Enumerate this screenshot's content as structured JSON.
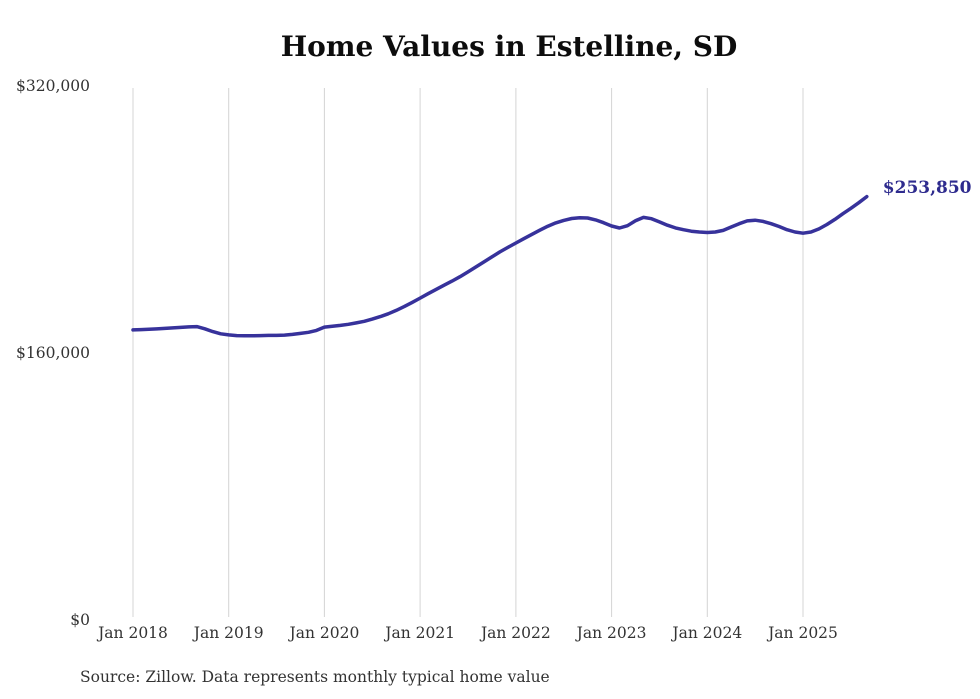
{
  "title": "Home Values in Estelline, SD",
  "source_note": "Source: Zillow. Data represents monthly typical home value",
  "end_label": "$253,850",
  "chart_data": {
    "type": "line",
    "title": "Home Values in Estelline, SD",
    "xlabel": "",
    "ylabel": "",
    "ylim": [
      0,
      320000
    ],
    "grid": "vertical-only",
    "legend": "none",
    "line_color": "#37329b",
    "gridline_color": "#d4d4d4",
    "end_label_color": "#2e2b8e",
    "frequency": "monthly",
    "x_start": "Jan 2018",
    "x_end": "Sep 2025",
    "latest_value": 253850,
    "y_ticks": [
      {
        "label": "$0",
        "value": 0
      },
      {
        "label": "$160,000",
        "value": 160000
      },
      {
        "label": "$320,000",
        "value": 320000
      }
    ],
    "x_ticks": [
      {
        "label": "Jan 2018",
        "month_index": 0
      },
      {
        "label": "Jan 2019",
        "month_index": 12
      },
      {
        "label": "Jan 2020",
        "month_index": 24
      },
      {
        "label": "Jan 2021",
        "month_index": 36
      },
      {
        "label": "Jan 2022",
        "month_index": 48
      },
      {
        "label": "Jan 2023",
        "month_index": 60
      },
      {
        "label": "Jan 2024",
        "month_index": 72
      },
      {
        "label": "Jan 2025",
        "month_index": 84
      }
    ],
    "values": [
      173900,
      174100,
      174300,
      174500,
      174800,
      175100,
      175400,
      175700,
      175900,
      174600,
      172900,
      171600,
      170900,
      170500,
      170400,
      170400,
      170500,
      170600,
      170600,
      170800,
      171200,
      171800,
      172500,
      173600,
      175600,
      176100,
      176600,
      177300,
      178100,
      179100,
      180400,
      181900,
      183600,
      185600,
      187900,
      190400,
      193000,
      195600,
      198200,
      200700,
      203200,
      205800,
      208700,
      211700,
      214700,
      217700,
      220700,
      223400,
      226000,
      228600,
      231200,
      233700,
      236100,
      238100,
      239600,
      240700,
      241200,
      241000,
      239900,
      238200,
      236200,
      235000,
      236400,
      239400,
      241400,
      240600,
      238700,
      236700,
      235100,
      234000,
      233100,
      232600,
      232300,
      232600,
      233600,
      235600,
      237600,
      239300,
      239700,
      239000,
      237600,
      235900,
      234000,
      232600,
      231900,
      232600,
      234500,
      237100,
      240200,
      243600,
      246800,
      250200,
      253850
    ]
  }
}
